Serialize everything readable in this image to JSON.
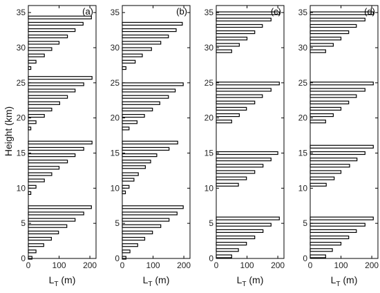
{
  "figure": {
    "ylabel": "Height (km)",
    "xlabel_main": "L",
    "xlabel_sub": "T",
    "xlabel_unit": " (m)"
  },
  "chart_data": {
    "type": "bar",
    "orientation": "horizontal",
    "xlim": [
      0,
      220
    ],
    "ylim": [
      0,
      36
    ],
    "xticks": [
      0,
      100,
      200
    ],
    "yticks": [
      0,
      5,
      10,
      15,
      20,
      25,
      30,
      35
    ],
    "grid": false,
    "bar_fill": "#ffffff",
    "bar_edge": "#000000",
    "panels": [
      {
        "label": "(a)",
        "bars": [
          {
            "y": 0.1,
            "x": 12
          },
          {
            "y": 1.0,
            "x": 25
          },
          {
            "y": 1.9,
            "x": 50
          },
          {
            "y": 2.8,
            "x": 75
          },
          {
            "y": 3.7,
            "x": 98
          },
          {
            "y": 4.6,
            "x": 125
          },
          {
            "y": 5.5,
            "x": 152
          },
          {
            "y": 6.4,
            "x": 180
          },
          {
            "y": 7.3,
            "x": 205
          },
          {
            "y": 9.3,
            "x": 8
          },
          {
            "y": 10.2,
            "x": 25
          },
          {
            "y": 11.1,
            "x": 52
          },
          {
            "y": 12.0,
            "x": 76
          },
          {
            "y": 12.9,
            "x": 100
          },
          {
            "y": 13.8,
            "x": 127
          },
          {
            "y": 14.7,
            "x": 152
          },
          {
            "y": 15.6,
            "x": 180
          },
          {
            "y": 16.5,
            "x": 207
          },
          {
            "y": 18.5,
            "x": 8
          },
          {
            "y": 19.4,
            "x": 25
          },
          {
            "y": 20.3,
            "x": 52
          },
          {
            "y": 21.2,
            "x": 76
          },
          {
            "y": 22.1,
            "x": 102
          },
          {
            "y": 23.0,
            "x": 127
          },
          {
            "y": 23.9,
            "x": 152
          },
          {
            "y": 24.8,
            "x": 180
          },
          {
            "y": 25.7,
            "x": 207
          },
          {
            "y": 27.1,
            "x": 8
          },
          {
            "y": 28.0,
            "x": 25
          },
          {
            "y": 28.9,
            "x": 52
          },
          {
            "y": 29.8,
            "x": 76
          },
          {
            "y": 30.7,
            "x": 100
          },
          {
            "y": 31.6,
            "x": 127
          },
          {
            "y": 32.5,
            "x": 152
          },
          {
            "y": 33.4,
            "x": 178
          },
          {
            "y": 34.3,
            "x": 205
          }
        ]
      },
      {
        "label": "(b)",
        "bars": [
          {
            "y": 0.1,
            "x": 12
          },
          {
            "y": 1.0,
            "x": 25
          },
          {
            "y": 1.9,
            "x": 50
          },
          {
            "y": 2.8,
            "x": 73
          },
          {
            "y": 3.7,
            "x": 98
          },
          {
            "y": 4.6,
            "x": 125
          },
          {
            "y": 5.5,
            "x": 152
          },
          {
            "y": 6.4,
            "x": 178
          },
          {
            "y": 7.3,
            "x": 198
          },
          {
            "y": 9.4,
            "x": 10
          },
          {
            "y": 10.2,
            "x": 22
          },
          {
            "y": 11.2,
            "x": 38
          },
          {
            "y": 12.0,
            "x": 52
          },
          {
            "y": 13.0,
            "x": 75
          },
          {
            "y": 13.8,
            "x": 92
          },
          {
            "y": 14.7,
            "x": 112
          },
          {
            "y": 15.6,
            "x": 152
          },
          {
            "y": 16.5,
            "x": 180
          },
          {
            "y": 18.5,
            "x": 22
          },
          {
            "y": 19.4,
            "x": 48
          },
          {
            "y": 20.3,
            "x": 72
          },
          {
            "y": 21.2,
            "x": 98
          },
          {
            "y": 22.1,
            "x": 122
          },
          {
            "y": 23.0,
            "x": 150
          },
          {
            "y": 23.9,
            "x": 172
          },
          {
            "y": 24.8,
            "x": 198
          },
          {
            "y": 27.1,
            "x": 12
          },
          {
            "y": 28.0,
            "x": 42
          },
          {
            "y": 28.9,
            "x": 65
          },
          {
            "y": 29.8,
            "x": 95
          },
          {
            "y": 30.7,
            "x": 125
          },
          {
            "y": 31.6,
            "x": 150
          },
          {
            "y": 32.5,
            "x": 175
          },
          {
            "y": 33.4,
            "x": 195
          }
        ]
      },
      {
        "label": "(c)",
        "bars": [
          {
            "y": 0.3,
            "x": 50
          },
          {
            "y": 1.2,
            "x": 72
          },
          {
            "y": 2.1,
            "x": 98
          },
          {
            "y": 3.0,
            "x": 125
          },
          {
            "y": 3.9,
            "x": 152
          },
          {
            "y": 4.8,
            "x": 178
          },
          {
            "y": 5.7,
            "x": 205
          },
          {
            "y": 10.5,
            "x": 72
          },
          {
            "y": 11.4,
            "x": 98
          },
          {
            "y": 12.3,
            "x": 125
          },
          {
            "y": 13.2,
            "x": 152
          },
          {
            "y": 14.1,
            "x": 178
          },
          {
            "y": 15.0,
            "x": 200
          },
          {
            "y": 19.5,
            "x": 50
          },
          {
            "y": 20.4,
            "x": 75
          },
          {
            "y": 21.3,
            "x": 98
          },
          {
            "y": 22.2,
            "x": 125
          },
          {
            "y": 23.1,
            "x": 150
          },
          {
            "y": 24.0,
            "x": 178
          },
          {
            "y": 24.9,
            "x": 205
          },
          {
            "y": 29.5,
            "x": 50
          },
          {
            "y": 30.4,
            "x": 75
          },
          {
            "y": 31.3,
            "x": 100
          },
          {
            "y": 32.2,
            "x": 125
          },
          {
            "y": 33.1,
            "x": 150
          },
          {
            "y": 34.0,
            "x": 178
          },
          {
            "y": 34.9,
            "x": 205
          }
        ]
      },
      {
        "label": "(d)",
        "bars": [
          {
            "y": 0.3,
            "x": 50
          },
          {
            "y": 1.2,
            "x": 72
          },
          {
            "y": 2.1,
            "x": 100
          },
          {
            "y": 3.0,
            "x": 125
          },
          {
            "y": 3.9,
            "x": 150
          },
          {
            "y": 4.8,
            "x": 178
          },
          {
            "y": 5.7,
            "x": 205
          },
          {
            "y": 10.5,
            "x": 52
          },
          {
            "y": 11.4,
            "x": 78
          },
          {
            "y": 12.3,
            "x": 100
          },
          {
            "y": 13.2,
            "x": 128
          },
          {
            "y": 14.1,
            "x": 152
          },
          {
            "y": 15.0,
            "x": 178
          },
          {
            "y": 15.9,
            "x": 205
          },
          {
            "y": 19.5,
            "x": 50
          },
          {
            "y": 20.4,
            "x": 75
          },
          {
            "y": 21.3,
            "x": 100
          },
          {
            "y": 22.2,
            "x": 125
          },
          {
            "y": 23.1,
            "x": 150
          },
          {
            "y": 24.0,
            "x": 178
          },
          {
            "y": 24.9,
            "x": 205
          },
          {
            "y": 29.5,
            "x": 50
          },
          {
            "y": 30.4,
            "x": 75
          },
          {
            "y": 31.3,
            "x": 100
          },
          {
            "y": 32.2,
            "x": 125
          },
          {
            "y": 33.1,
            "x": 150
          },
          {
            "y": 34.0,
            "x": 178
          },
          {
            "y": 34.9,
            "x": 205
          }
        ]
      }
    ]
  }
}
